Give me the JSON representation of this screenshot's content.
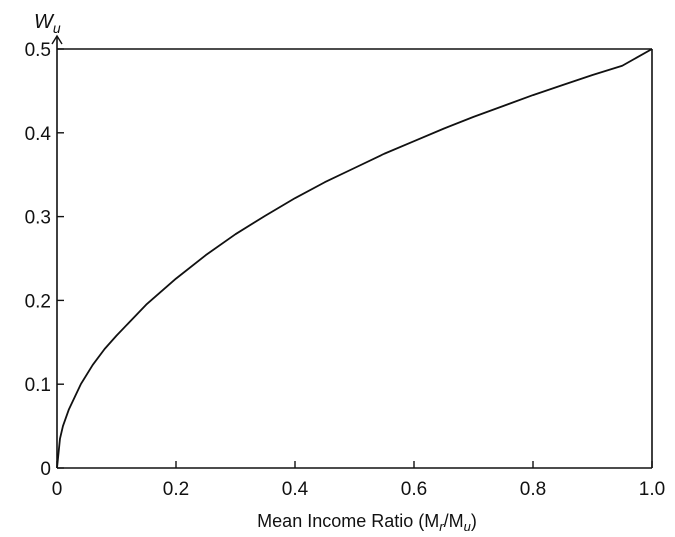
{
  "chart_data": {
    "type": "line",
    "title": "",
    "xlabel": "Mean Income Ratio (M",
    "xlabel_sub1": "r",
    "xlabel_mid": "/M",
    "xlabel_sub2": "u",
    "xlabel_end": ")",
    "ylabel": "W",
    "ylabel_sub": "u",
    "xlim": [
      0,
      1.0
    ],
    "ylim": [
      0,
      0.5
    ],
    "x_ticks": [
      0,
      0.2,
      0.4,
      0.6,
      0.8,
      1.0
    ],
    "x_tick_labels": [
      "0",
      "0.2",
      "0.4",
      "0.6",
      "0.8",
      "1.0"
    ],
    "y_ticks": [
      0,
      0.1,
      0.2,
      0.3,
      0.4,
      0.5
    ],
    "y_tick_labels": [
      "0",
      "0.1",
      "0.2",
      "0.3",
      "0.4",
      "0.5"
    ],
    "grid": false,
    "series": [
      {
        "x": [
          0,
          0.005,
          0.01,
          0.02,
          0.04,
          0.06,
          0.08,
          0.1,
          0.15,
          0.2,
          0.25,
          0.3,
          0.35,
          0.4,
          0.45,
          0.5,
          0.55,
          0.6,
          0.65,
          0.7,
          0.75,
          0.8,
          0.85,
          0.9,
          0.95,
          1.0
        ],
        "values": [
          0,
          0.035,
          0.05,
          0.07,
          0.1,
          0.123,
          0.142,
          0.158,
          0.195,
          0.226,
          0.254,
          0.279,
          0.301,
          0.322,
          0.341,
          0.358,
          0.375,
          0.39,
          0.405,
          0.419,
          0.432,
          0.445,
          0.457,
          0.469,
          0.48,
          0.5
        ]
      }
    ],
    "colors": {
      "line": "#111111",
      "axis": "#111111"
    }
  }
}
